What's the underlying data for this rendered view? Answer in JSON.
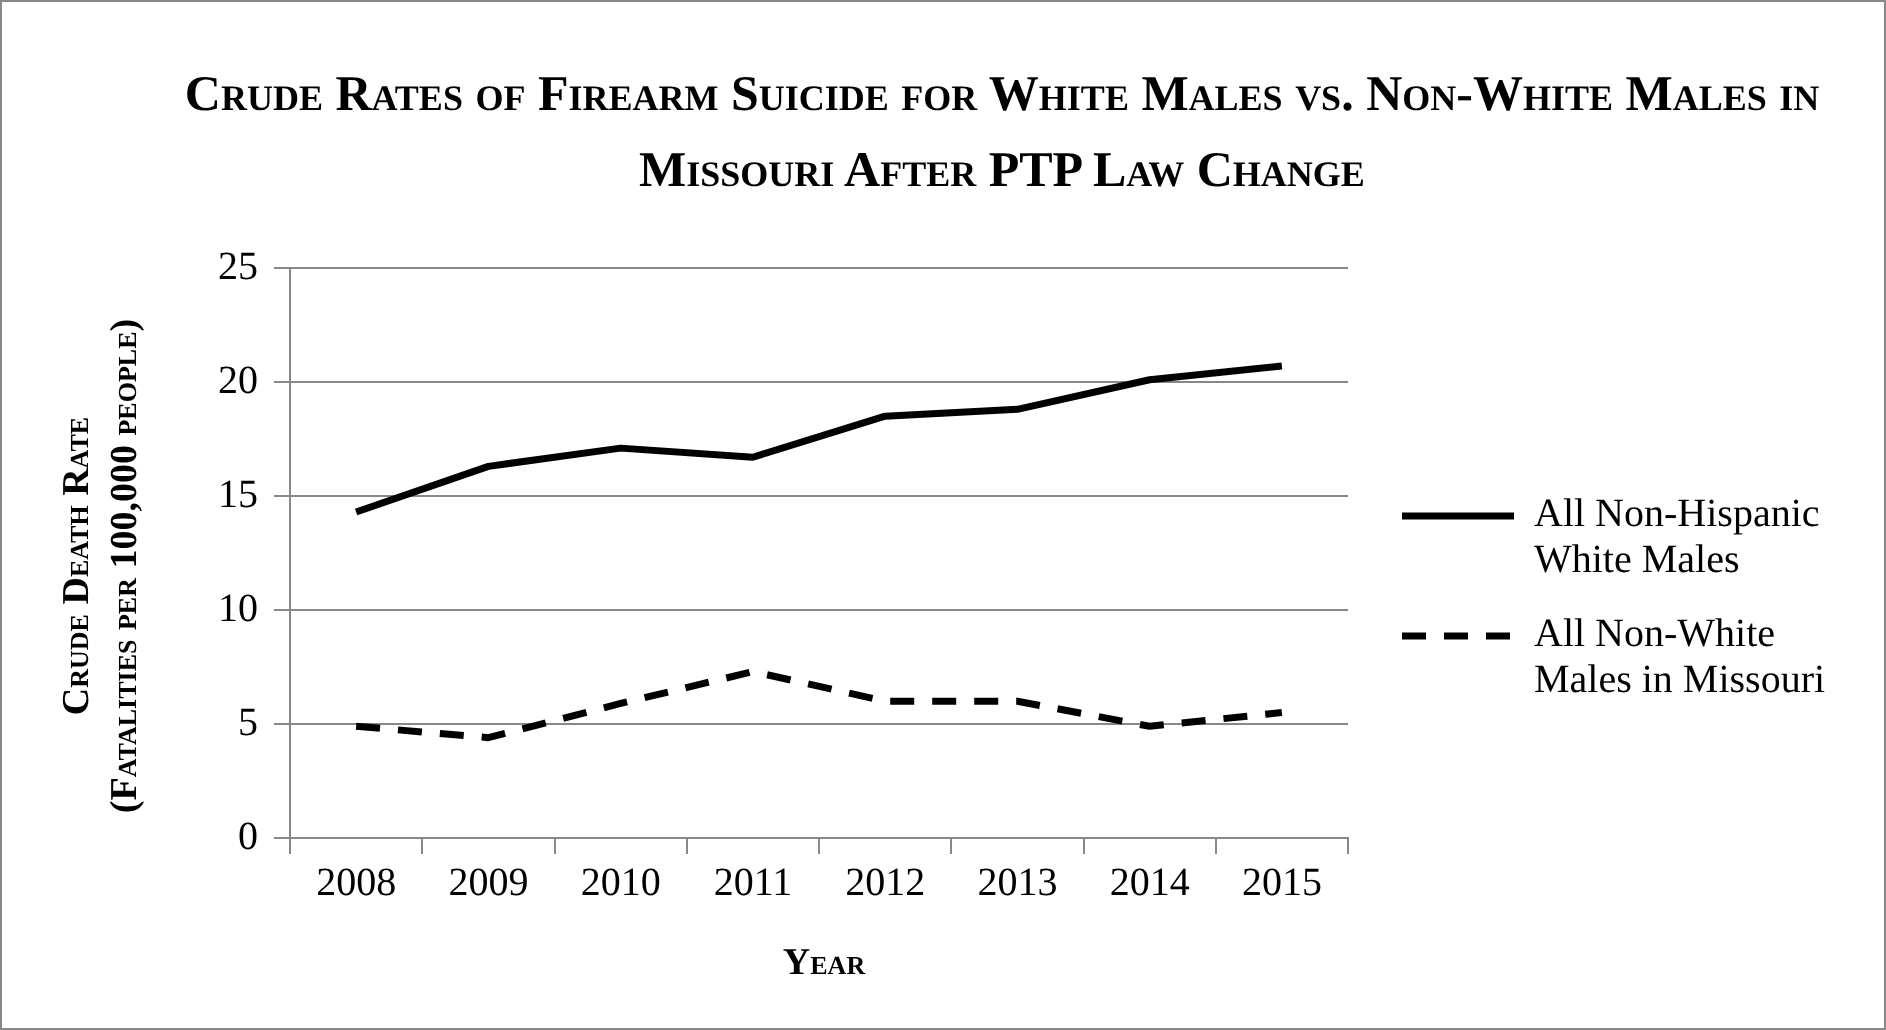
{
  "chart_data": {
    "type": "line",
    "title": "Crude Rates of Firearm Suicide for White Males vs. Non-White Males in Missouri After PTP Law Change",
    "xlabel": "Year",
    "ylabel": "Crude Death Rate\n(Fatalities per 100,000 people)",
    "categories": [
      "2008",
      "2009",
      "2010",
      "2011",
      "2012",
      "2013",
      "2014",
      "2015"
    ],
    "series": [
      {
        "name": "All Non-Hispanic White Males",
        "color": "#000000",
        "line_style": "solid",
        "values": [
          14.3,
          16.3,
          17.1,
          16.7,
          18.5,
          18.8,
          20.1,
          20.7
        ]
      },
      {
        "name": "All Non-White Males in Missouri",
        "color": "#000000",
        "line_style": "dashed",
        "values": [
          4.9,
          4.4,
          5.9,
          7.3,
          6.0,
          6.0,
          4.9,
          5.5
        ]
      }
    ],
    "ylim": [
      0,
      25
    ],
    "yticks": [
      0,
      5,
      10,
      15,
      20,
      25
    ],
    "grid": "y",
    "legend": "right",
    "marker": "none"
  }
}
